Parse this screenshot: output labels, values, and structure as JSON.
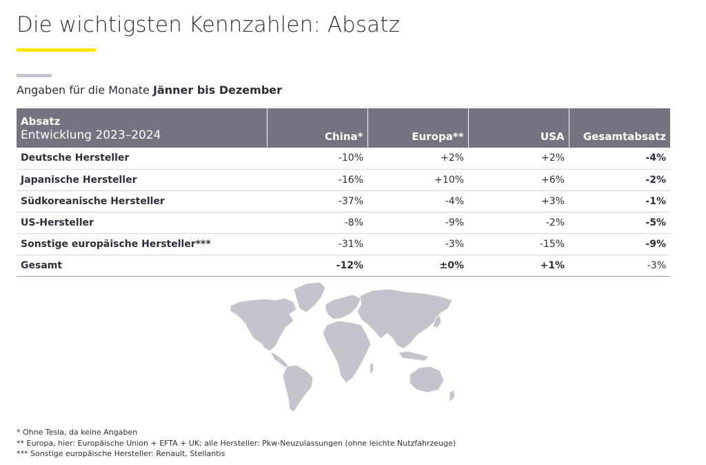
{
  "title": "Die wichtigsten Kennzahlen: Absatz",
  "subtitle": {
    "prefix": "Angaben für die Monate ",
    "bold": "Jänner bis Dezember"
  },
  "table": {
    "header": {
      "line1": "Absatz",
      "line2": "Entwicklung 2023–2024",
      "columns": [
        "China*",
        "Europa**",
        "USA",
        "Gesamtabsatz"
      ]
    },
    "rows": [
      {
        "label": "Deutsche Hersteller",
        "values": [
          "-10%",
          "+2%",
          "+2%",
          "-4%"
        ]
      },
      {
        "label": "Japanische Hersteller",
        "values": [
          "-16%",
          "+10%",
          "+6%",
          "-2%"
        ]
      },
      {
        "label": "Südkoreanische Hersteller",
        "values": [
          "-37%",
          "-4%",
          "+3%",
          "-1%"
        ]
      },
      {
        "label": "US-Hersteller",
        "values": [
          "-8%",
          "-9%",
          "-2%",
          "-5%"
        ]
      },
      {
        "label": "Sonstige europäische Hersteller***",
        "values": [
          "-31%",
          "-3%",
          "-15%",
          "-9%"
        ]
      },
      {
        "label": "Gesamt",
        "values": [
          "-12%",
          "±0%",
          "+1%",
          "-3%"
        ]
      }
    ]
  },
  "footnotes": [
    "* Ohne Tesla, da keine Angaben",
    "** Europa, hier: Europäische Union + EFTA + UK; alle Hersteller: Pkw-Neuzulassungen (ohne leichte Nutzfahrzeuge)",
    "*** Sonstige europäische Hersteller: Renault, Stellantis"
  ],
  "colors": {
    "accent": "#ffe600",
    "header_bg": "#747480",
    "text": "#2e2e38",
    "map": "#c4c4cd",
    "grey_bar": "#c4c4cd"
  }
}
